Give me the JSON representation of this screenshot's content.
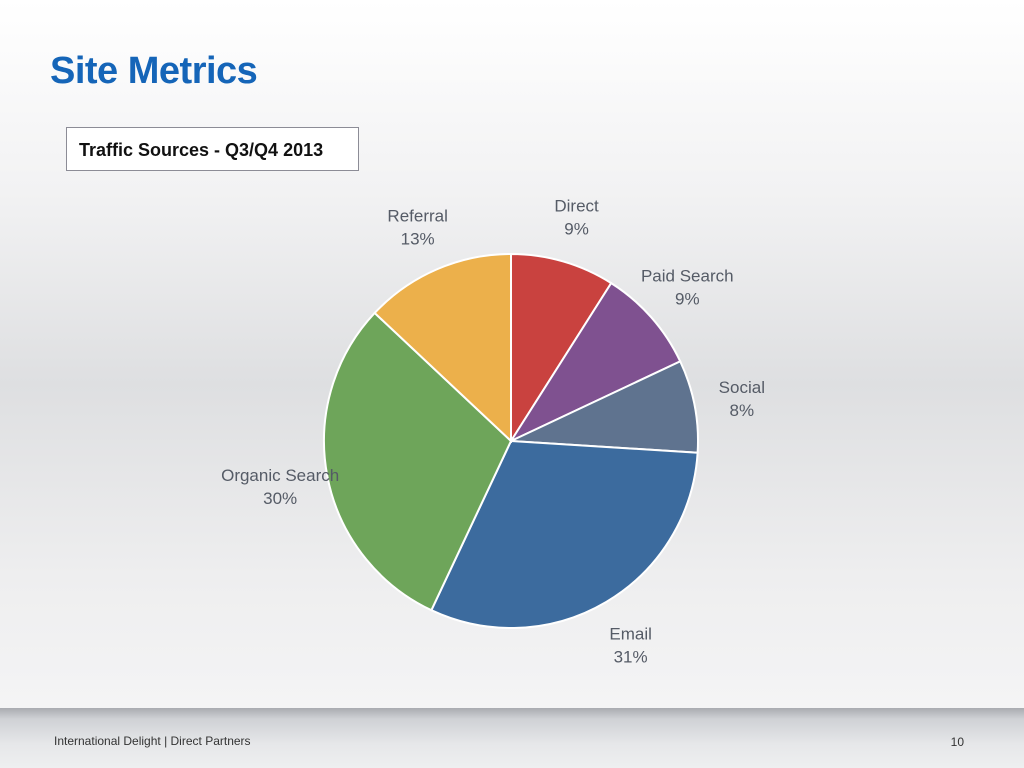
{
  "slide": {
    "title": "Site Metrics",
    "subtitle": "Traffic Sources - Q3/Q4 2013"
  },
  "footer": {
    "text": "International Delight | Direct Partners",
    "page_number": "10"
  },
  "chart_data": {
    "type": "pie",
    "title": "Traffic Sources - Q3/Q4 2013",
    "slices": [
      {
        "label": "Direct",
        "value": 9,
        "display": "9%",
        "color": "#c9423f"
      },
      {
        "label": "Paid Search",
        "value": 9,
        "display": "9%",
        "color": "#7f5190"
      },
      {
        "label": "Social",
        "value": 8,
        "display": "8%",
        "color": "#5f738f"
      },
      {
        "label": "Email",
        "value": 31,
        "display": "31%",
        "color": "#3c6b9e"
      },
      {
        "label": "Organic Search",
        "value": 30,
        "display": "30%",
        "color": "#6ea55a"
      },
      {
        "label": "Referral",
        "value": 13,
        "display": "13%",
        "color": "#ecb04b"
      }
    ],
    "start_angle_deg": 0,
    "direction": "clockwise",
    "legend": "none",
    "labels": "outside"
  }
}
